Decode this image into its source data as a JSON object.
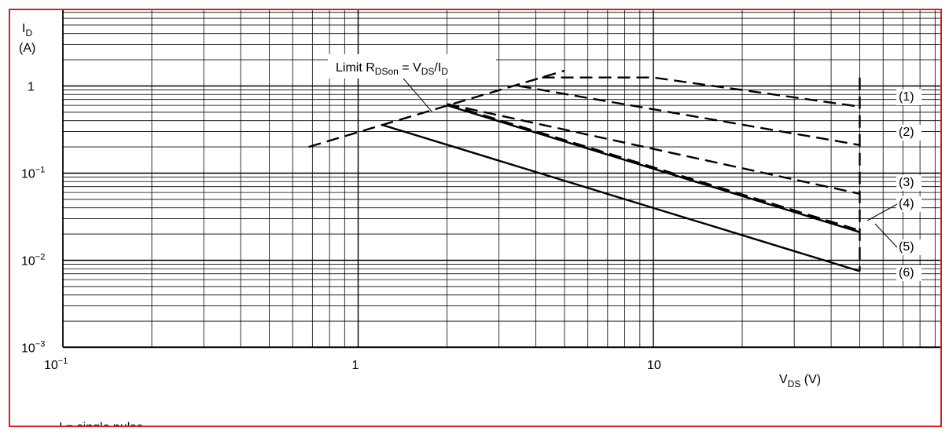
{
  "chart_data": {
    "type": "line",
    "x_scale": "log",
    "y_scale": "log",
    "xlim": [
      0.1,
      100
    ],
    "ylim": [
      0.001,
      5
    ],
    "grid": true,
    "xlabel": {
      "main": "V",
      "sub": "DS",
      "unit": " (V)"
    },
    "ylabel": {
      "main": "I",
      "sub": "D",
      "unit": "(A)"
    },
    "x_ticks": [
      {
        "value": 0.1,
        "base": "10",
        "exp": "−1"
      },
      {
        "value": 1,
        "base": "1",
        "exp": ""
      },
      {
        "value": 10,
        "base": "10",
        "exp": ""
      }
    ],
    "y_ticks": [
      {
        "value": 1,
        "base": "1",
        "exp": ""
      },
      {
        "value": 0.1,
        "base": "10",
        "exp": "−1"
      },
      {
        "value": 0.01,
        "base": "10",
        "exp": "−2"
      },
      {
        "value": 0.001,
        "base": "10",
        "exp": "−3"
      }
    ],
    "annotation": {
      "parts": [
        "Limit R",
        "DSon",
        " = V",
        "DS",
        "/I",
        "D"
      ],
      "x": 1.35,
      "y": 0.95
    },
    "series": [
      {
        "label": "(1)",
        "style": "dashed",
        "x": [
          4.2,
          10,
          50
        ],
        "y": [
          1.25,
          1.25,
          0.58
        ]
      },
      {
        "label": "(2)",
        "style": "dashed",
        "x": [
          3.5,
          50
        ],
        "y": [
          1.0,
          0.21
        ]
      },
      {
        "label": "(3)",
        "style": "dashed",
        "x": [
          2.0,
          50
        ],
        "y": [
          0.62,
          0.058
        ]
      },
      {
        "label": "(4)",
        "style": "dashed",
        "x": [
          2.0,
          50
        ],
        "y": [
          0.62,
          0.022
        ]
      },
      {
        "label": "(5)",
        "style": "solid",
        "x": [
          2.0,
          50
        ],
        "y": [
          0.6,
          0.021
        ]
      },
      {
        "label": "(6)",
        "style": "solid",
        "x": [
          1.2,
          50
        ],
        "y": [
          0.36,
          0.0075
        ]
      }
    ],
    "limit_line": {
      "style": "dashed",
      "x": [
        0.68,
        5.0
      ],
      "y": [
        0.2,
        1.5
      ]
    },
    "vertical_limit": {
      "style": "dashed",
      "x": 50,
      "y": [
        0.0075,
        1.25
      ]
    },
    "footnote": "I    = single pulse"
  }
}
